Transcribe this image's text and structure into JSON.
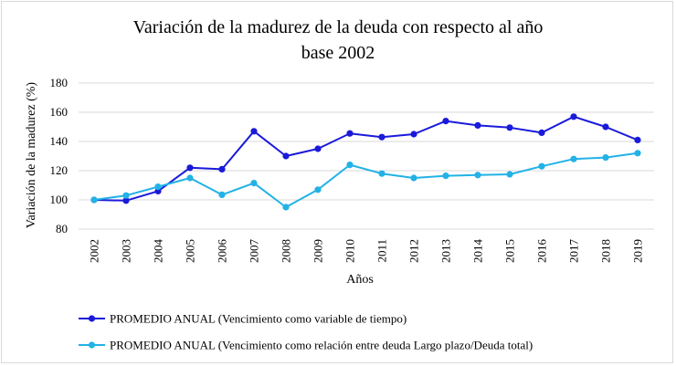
{
  "chart_data": {
    "type": "line",
    "title_line1": "Variación de la madurez de la deuda con respecto al año",
    "title_line2": "base 2002",
    "xlabel": "Años",
    "ylabel": "Variación de la madurez (%)",
    "ylim": [
      80,
      180
    ],
    "yticks": [
      80,
      100,
      120,
      140,
      160,
      180
    ],
    "grid": true,
    "legend_position": "bottom-left",
    "categories": [
      "2002",
      "2003",
      "2004",
      "2005",
      "2006",
      "2007",
      "2008",
      "2009",
      "2010",
      "2011",
      "2012",
      "2013",
      "2014",
      "2015",
      "2016",
      "2017",
      "2018",
      "2019"
    ],
    "series": [
      {
        "name": "PROMEDIO ANUAL (Vencimiento como variable de tiempo)",
        "color": "#1a1adb",
        "values": [
          100,
          99.5,
          106,
          122,
          121,
          147,
          130,
          135,
          145.5,
          143,
          145,
          154,
          151,
          149.5,
          146,
          157,
          150,
          141
        ]
      },
      {
        "name": "PROMEDIO ANUAL (Vencimiento como relación entre deuda Largo plazo/Deuda total)",
        "color": "#22b2e6",
        "values": [
          100,
          103,
          109,
          115,
          103.5,
          111.5,
          95,
          107,
          124,
          118,
          115,
          116.5,
          117,
          117.5,
          123,
          128,
          129,
          132
        ]
      }
    ]
  }
}
